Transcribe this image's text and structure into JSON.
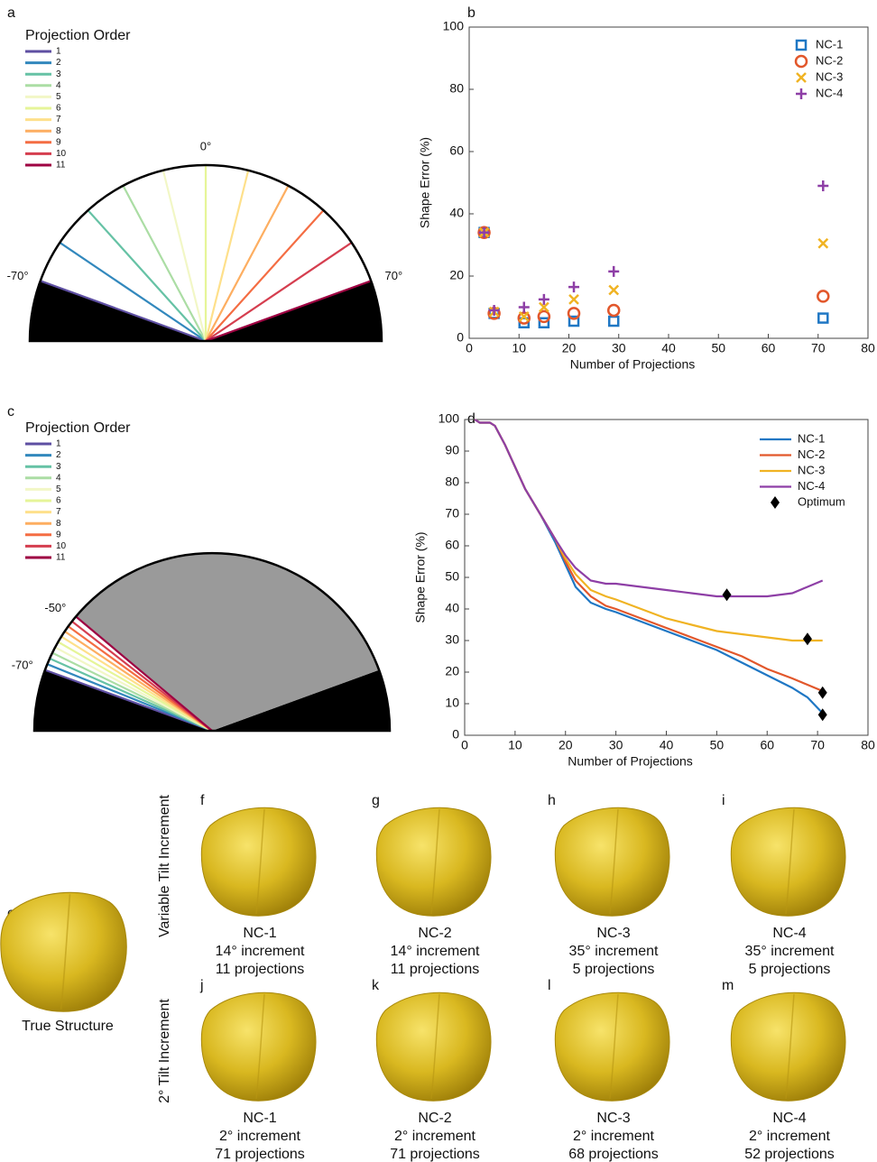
{
  "panel_labels": [
    "a",
    "b",
    "c",
    "d",
    "e",
    "f",
    "g",
    "h",
    "i",
    "j",
    "k",
    "l",
    "m"
  ],
  "fan_a": {
    "title": "Projection Order",
    "orders": [
      "1",
      "2",
      "3",
      "4",
      "5",
      "6",
      "7",
      "8",
      "9",
      "10",
      "11"
    ],
    "colors": [
      "#5e4fa2",
      "#3288bd",
      "#66c2a5",
      "#abdda4",
      "#f2f7c6",
      "#e6f598",
      "#fee08b",
      "#fdae61",
      "#f46d43",
      "#d53e4f",
      "#9e0142"
    ],
    "marks": [
      {
        "value": -70,
        "label": "-70°"
      },
      {
        "value": 0,
        "label": "0°"
      },
      {
        "value": 70,
        "label": "70°"
      }
    ]
  },
  "fan_c": {
    "title": "Projection Order",
    "orders": [
      "1",
      "2",
      "3",
      "4",
      "5",
      "6",
      "7",
      "8",
      "9",
      "10",
      "11"
    ],
    "colors": [
      "#5e4fa2",
      "#3288bd",
      "#66c2a5",
      "#abdda4",
      "#f2f7c6",
      "#e6f598",
      "#fee08b",
      "#fdae61",
      "#f46d43",
      "#d53e4f",
      "#9e0142"
    ],
    "marks": [
      {
        "value": -70,
        "label": "-70°"
      },
      {
        "value": -50,
        "label": "-50°"
      }
    ]
  },
  "chart_data": [
    {
      "type": "scatter",
      "x_label": "Number of Projections",
      "y_label": "Shape Error (%)",
      "xlim": [
        0,
        80
      ],
      "ylim": [
        0,
        100
      ],
      "xticks": [
        0,
        10,
        20,
        30,
        40,
        50,
        60,
        70,
        80
      ],
      "yticks": [
        0,
        20,
        40,
        60,
        80,
        100
      ],
      "series": [
        {
          "name": "NC-1",
          "color": "#1f77c4",
          "marker": "square",
          "x": [
            3,
            5,
            11,
            15,
            21,
            29,
            71
          ],
          "values": [
            34,
            8,
            5,
            5,
            5.5,
            5.5,
            6.5
          ]
        },
        {
          "name": "NC-2",
          "color": "#e2572b",
          "marker": "circle",
          "x": [
            3,
            5,
            11,
            15,
            21,
            29,
            71
          ],
          "values": [
            34,
            8,
            6.5,
            7,
            8,
            9,
            13.5
          ]
        },
        {
          "name": "NC-3",
          "color": "#f0b323",
          "marker": "x",
          "x": [
            3,
            5,
            11,
            15,
            21,
            29,
            71
          ],
          "values": [
            34,
            8.5,
            7,
            10,
            12.5,
            15.5,
            30.5
          ]
        },
        {
          "name": "NC-4",
          "color": "#8e3fa6",
          "marker": "plus",
          "x": [
            3,
            5,
            11,
            15,
            21,
            29,
            71
          ],
          "values": [
            34,
            9,
            10,
            12.5,
            16.5,
            21.5,
            49
          ]
        }
      ]
    },
    {
      "type": "line",
      "x_label": "Number of Projections",
      "y_label": "Shape Error (%)",
      "xlim": [
        0,
        80
      ],
      "ylim": [
        0,
        100
      ],
      "xticks": [
        0,
        10,
        20,
        30,
        40,
        50,
        60,
        70,
        80
      ],
      "yticks": [
        0,
        10,
        20,
        30,
        40,
        50,
        60,
        70,
        80,
        90,
        100
      ],
      "x": [
        2,
        3,
        4,
        5,
        6,
        8,
        10,
        12,
        15,
        18,
        20,
        22,
        25,
        28,
        30,
        35,
        40,
        45,
        50,
        55,
        60,
        65,
        68,
        71
      ],
      "series": [
        {
          "name": "NC-1",
          "color": "#1f77c4",
          "values": [
            100,
            99,
            99,
            99,
            98,
            92,
            85,
            78,
            70,
            61,
            54,
            47,
            42,
            40,
            39,
            36,
            33,
            30,
            27,
            23,
            19,
            15,
            12,
            7
          ]
        },
        {
          "name": "NC-2",
          "color": "#e2572b",
          "values": [
            100,
            99,
            99,
            99,
            98,
            92,
            85,
            78,
            70,
            62,
            55,
            49,
            44,
            41,
            40,
            37,
            34,
            31,
            28,
            25,
            21,
            18,
            16,
            14
          ]
        },
        {
          "name": "NC-3",
          "color": "#f0b323",
          "values": [
            100,
            99,
            99,
            99,
            98,
            92,
            85,
            78,
            70,
            62,
            56,
            51,
            46,
            44,
            43,
            40,
            37,
            35,
            33,
            32,
            31,
            30,
            30,
            30
          ]
        },
        {
          "name": "NC-4",
          "color": "#8e3fa6",
          "values": [
            100,
            99,
            99,
            99,
            98,
            92,
            85,
            78,
            70,
            62,
            57,
            53,
            49,
            48,
            48,
            47,
            46,
            45,
            44,
            44,
            44,
            45,
            47,
            49
          ]
        }
      ],
      "optimum": {
        "name": "Optimum",
        "color": "#000000",
        "x": [
          52,
          68,
          71,
          71
        ],
        "values": [
          44.5,
          30.5,
          13.5,
          6.5
        ]
      }
    }
  ],
  "renders": {
    "true_structure": "True Structure",
    "row_labels": [
      "Variable Tilt Increment",
      "2° Tilt Increment"
    ],
    "items": [
      {
        "name": "NC-1",
        "increment": "14° increment",
        "projections": "11  projections"
      },
      {
        "name": "NC-2",
        "increment": "14° increment",
        "projections": "11 projections"
      },
      {
        "name": "NC-3",
        "increment": "35° increment",
        "projections": "5  projections"
      },
      {
        "name": "NC-4",
        "increment": "35° increment",
        "projections": "5  projections"
      },
      {
        "name": "NC-1",
        "increment": "2° increment",
        "projections": "71  projections"
      },
      {
        "name": "NC-2",
        "increment": "2° increment",
        "projections": "71  projections"
      },
      {
        "name": "NC-3",
        "increment": "2° increment",
        "projections": "68  projections"
      },
      {
        "name": "NC-4",
        "increment": "2° increment",
        "projections": "52  projections"
      }
    ]
  }
}
